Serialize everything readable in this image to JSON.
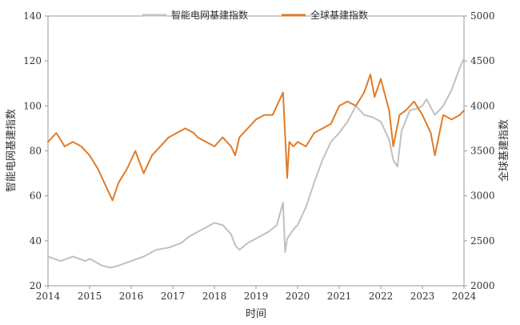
{
  "chart_data": {
    "type": "line",
    "title": "",
    "xlabel": "时间",
    "ylabel_left": "智能电网基建指数",
    "ylabel_right": "全球基建指数",
    "xlim": [
      2014,
      2024
    ],
    "ylim_left": [
      20,
      140
    ],
    "ylim_right": [
      2000,
      5000
    ],
    "x_ticks": [
      "2014",
      "2015",
      "2016",
      "2017",
      "2018",
      "2019",
      "2020",
      "2021",
      "2022",
      "2023",
      "2024"
    ],
    "y_ticks_left": [
      "20",
      "40",
      "60",
      "80",
      "100",
      "120",
      "140"
    ],
    "y_ticks_right": [
      "2000",
      "2500",
      "3000",
      "3500",
      "4000",
      "4500",
      "5000"
    ],
    "grid": false,
    "legend_position": "top-center",
    "series": [
      {
        "name": "智能电网基建指数",
        "axis": "left",
        "color": "#c0c0c0",
        "x": [
          2014.0,
          2014.3,
          2014.6,
          2014.9,
          2015.0,
          2015.3,
          2015.5,
          2015.7,
          2016.0,
          2016.3,
          2016.6,
          2016.9,
          2017.2,
          2017.4,
          2017.6,
          2017.8,
          2018.0,
          2018.2,
          2018.4,
          2018.5,
          2018.6,
          2018.8,
          2019.0,
          2019.3,
          2019.5,
          2019.65,
          2019.7,
          2019.75,
          2019.9,
          2020.0,
          2020.2,
          2020.4,
          2020.6,
          2020.8,
          2021.0,
          2021.2,
          2021.4,
          2021.6,
          2021.8,
          2022.0,
          2022.2,
          2022.3,
          2022.4,
          2022.5,
          2022.7,
          2022.9,
          2023.0,
          2023.1,
          2023.3,
          2023.5,
          2023.7,
          2023.9,
          2024.0
        ],
        "y": [
          33,
          31,
          33,
          31,
          32,
          29,
          28,
          29,
          31,
          33,
          36,
          37,
          39,
          42,
          44,
          46,
          48,
          47,
          43,
          38,
          36,
          39,
          41,
          44,
          47,
          57,
          35,
          41,
          45,
          47,
          55,
          66,
          76,
          84,
          88,
          93,
          100,
          96,
          95,
          93,
          85,
          76,
          73,
          89,
          98,
          99,
          100,
          103,
          96,
          100,
          107,
          117,
          121
        ]
      },
      {
        "name": "全球基建指数",
        "axis": "right",
        "color": "#e07b28",
        "x": [
          2014.0,
          2014.2,
          2014.4,
          2014.6,
          2014.8,
          2015.0,
          2015.2,
          2015.4,
          2015.55,
          2015.7,
          2015.9,
          2016.1,
          2016.3,
          2016.5,
          2016.7,
          2016.9,
          2017.1,
          2017.3,
          2017.5,
          2017.6,
          2017.8,
          2018.0,
          2018.2,
          2018.4,
          2018.5,
          2018.6,
          2018.8,
          2019.0,
          2019.2,
          2019.4,
          2019.6,
          2019.65,
          2019.75,
          2019.8,
          2019.9,
          2020.0,
          2020.2,
          2020.4,
          2020.6,
          2020.8,
          2021.0,
          2021.2,
          2021.4,
          2021.6,
          2021.75,
          2021.85,
          2022.0,
          2022.2,
          2022.3,
          2022.45,
          2022.6,
          2022.8,
          2023.0,
          2023.2,
          2023.3,
          2023.5,
          2023.7,
          2023.9,
          2024.0
        ],
        "y": [
          3600,
          3700,
          3550,
          3600,
          3550,
          3450,
          3300,
          3100,
          2950,
          3150,
          3300,
          3500,
          3250,
          3450,
          3550,
          3650,
          3700,
          3750,
          3700,
          3650,
          3600,
          3550,
          3650,
          3550,
          3450,
          3650,
          3750,
          3850,
          3900,
          3900,
          4100,
          4150,
          3200,
          3600,
          3550,
          3600,
          3550,
          3700,
          3750,
          3800,
          4000,
          4050,
          4000,
          4150,
          4350,
          4100,
          4300,
          3950,
          3550,
          3900,
          3950,
          4050,
          3900,
          3700,
          3450,
          3900,
          3850,
          3900,
          3950
        ]
      }
    ]
  }
}
